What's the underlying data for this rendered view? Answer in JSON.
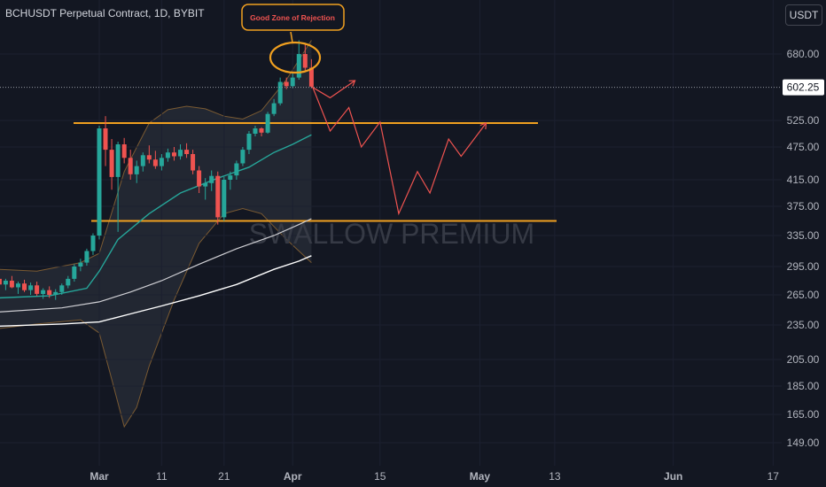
{
  "header": {
    "title": "BCHUSDT Perpetual Contract, 1D, BYBIT",
    "currency_label": "USDT"
  },
  "colors": {
    "background": "#131722",
    "up": "#26a69a",
    "down": "#ef5350",
    "level": "#f0a020",
    "ema": "#26a69a",
    "ma_slow": "#ffffff",
    "projection": "#ef5350"
  },
  "watermark": "SWALLOW PREMIUM",
  "annotation": {
    "text": "Good Zone of Rejection"
  },
  "current_price": {
    "label": "602.25",
    "value": 602.25
  },
  "chart_data": {
    "type": "candlestick",
    "y_ticks": [
      {
        "label": "680.00",
        "value": 680
      },
      {
        "label": "525.00",
        "value": 525
      },
      {
        "label": "475.00",
        "value": 475
      },
      {
        "label": "415.00",
        "value": 415
      },
      {
        "label": "375.00",
        "value": 375
      },
      {
        "label": "335.00",
        "value": 335
      },
      {
        "label": "295.00",
        "value": 295
      },
      {
        "label": "265.00",
        "value": 265
      },
      {
        "label": "235.00",
        "value": 235
      },
      {
        "label": "205.00",
        "value": 205
      },
      {
        "label": "185.00",
        "value": 185
      },
      {
        "label": "165.00",
        "value": 165
      },
      {
        "label": "149.00",
        "value": 149
      }
    ],
    "x_ticks": [
      {
        "label": "Mar",
        "bold": true,
        "day": 0
      },
      {
        "label": "11",
        "bold": false,
        "day": 10
      },
      {
        "label": "21",
        "bold": false,
        "day": 20
      },
      {
        "label": "Apr",
        "bold": true,
        "day": 31
      },
      {
        "label": "15",
        "bold": false,
        "day": 45
      },
      {
        "label": "May",
        "bold": true,
        "day": 61
      },
      {
        "label": "13",
        "bold": false,
        "day": 73
      },
      {
        "label": "Jun",
        "bold": true,
        "day": 92
      },
      {
        "label": "17",
        "bold": false,
        "day": 108
      }
    ],
    "levels": [
      {
        "name": "resistance",
        "value": 520
      },
      {
        "name": "support",
        "value": 355
      }
    ],
    "candles": [
      {
        "day": -16,
        "o": 282,
        "h": 287,
        "l": 272,
        "c": 276
      },
      {
        "day": -15,
        "o": 276,
        "h": 282,
        "l": 270,
        "c": 280
      },
      {
        "day": -14,
        "o": 280,
        "h": 285,
        "l": 272,
        "c": 273
      },
      {
        "day": -13,
        "o": 273,
        "h": 279,
        "l": 266,
        "c": 277
      },
      {
        "day": -12,
        "o": 277,
        "h": 281,
        "l": 268,
        "c": 270
      },
      {
        "day": -11,
        "o": 270,
        "h": 278,
        "l": 265,
        "c": 275
      },
      {
        "day": -10,
        "o": 275,
        "h": 279,
        "l": 264,
        "c": 266
      },
      {
        "day": -9,
        "o": 266,
        "h": 272,
        "l": 261,
        "c": 270
      },
      {
        "day": -8,
        "o": 270,
        "h": 274,
        "l": 262,
        "c": 265
      },
      {
        "day": -7,
        "o": 265,
        "h": 271,
        "l": 260,
        "c": 268
      },
      {
        "day": -6,
        "o": 268,
        "h": 277,
        "l": 265,
        "c": 275
      },
      {
        "day": -5,
        "o": 275,
        "h": 285,
        "l": 272,
        "c": 282
      },
      {
        "day": -4,
        "o": 282,
        "h": 298,
        "l": 279,
        "c": 295
      },
      {
        "day": -3,
        "o": 295,
        "h": 305,
        "l": 290,
        "c": 300
      },
      {
        "day": -2,
        "o": 300,
        "h": 318,
        "l": 296,
        "c": 315
      },
      {
        "day": -1,
        "o": 315,
        "h": 338,
        "l": 310,
        "c": 335
      },
      {
        "day": 0,
        "o": 335,
        "h": 515,
        "l": 330,
        "c": 510
      },
      {
        "day": 1,
        "o": 510,
        "h": 535,
        "l": 440,
        "c": 470
      },
      {
        "day": 2,
        "o": 470,
        "h": 490,
        "l": 400,
        "c": 420
      },
      {
        "day": 3,
        "o": 420,
        "h": 485,
        "l": 340,
        "c": 480
      },
      {
        "day": 4,
        "o": 480,
        "h": 492,
        "l": 445,
        "c": 455
      },
      {
        "day": 5,
        "o": 455,
        "h": 470,
        "l": 415,
        "c": 425
      },
      {
        "day": 6,
        "o": 425,
        "h": 450,
        "l": 410,
        "c": 440
      },
      {
        "day": 7,
        "o": 440,
        "h": 465,
        "l": 430,
        "c": 460
      },
      {
        "day": 8,
        "o": 460,
        "h": 478,
        "l": 445,
        "c": 452
      },
      {
        "day": 9,
        "o": 452,
        "h": 468,
        "l": 435,
        "c": 440
      },
      {
        "day": 10,
        "o": 440,
        "h": 462,
        "l": 432,
        "c": 455
      },
      {
        "day": 11,
        "o": 455,
        "h": 472,
        "l": 448,
        "c": 465
      },
      {
        "day": 12,
        "o": 465,
        "h": 475,
        "l": 450,
        "c": 458
      },
      {
        "day": 13,
        "o": 458,
        "h": 480,
        "l": 452,
        "c": 470
      },
      {
        "day": 14,
        "o": 470,
        "h": 482,
        "l": 455,
        "c": 462
      },
      {
        "day": 15,
        "o": 462,
        "h": 470,
        "l": 425,
        "c": 432
      },
      {
        "day": 16,
        "o": 432,
        "h": 440,
        "l": 395,
        "c": 405
      },
      {
        "day": 17,
        "o": 405,
        "h": 418,
        "l": 385,
        "c": 410
      },
      {
        "day": 18,
        "o": 410,
        "h": 432,
        "l": 398,
        "c": 422
      },
      {
        "day": 19,
        "o": 422,
        "h": 430,
        "l": 350,
        "c": 360
      },
      {
        "day": 20,
        "o": 360,
        "h": 420,
        "l": 355,
        "c": 415
      },
      {
        "day": 21,
        "o": 415,
        "h": 430,
        "l": 400,
        "c": 423
      },
      {
        "day": 22,
        "o": 423,
        "h": 450,
        "l": 415,
        "c": 445
      },
      {
        "day": 23,
        "o": 445,
        "h": 475,
        "l": 440,
        "c": 470
      },
      {
        "day": 24,
        "o": 470,
        "h": 505,
        "l": 462,
        "c": 500
      },
      {
        "day": 25,
        "o": 500,
        "h": 515,
        "l": 495,
        "c": 510
      },
      {
        "day": 26,
        "o": 510,
        "h": 512,
        "l": 495,
        "c": 502
      },
      {
        "day": 27,
        "o": 502,
        "h": 545,
        "l": 500,
        "c": 540
      },
      {
        "day": 28,
        "o": 540,
        "h": 575,
        "l": 535,
        "c": 565
      },
      {
        "day": 29,
        "o": 565,
        "h": 625,
        "l": 560,
        "c": 615
      },
      {
        "day": 30,
        "o": 615,
        "h": 625,
        "l": 598,
        "c": 605
      },
      {
        "day": 31,
        "o": 605,
        "h": 635,
        "l": 600,
        "c": 625
      },
      {
        "day": 32,
        "o": 625,
        "h": 690,
        "l": 620,
        "c": 680
      },
      {
        "day": 33,
        "o": 680,
        "h": 688,
        "l": 640,
        "c": 648
      },
      {
        "day": 34,
        "o": 648,
        "h": 668,
        "l": 600,
        "c": 604
      }
    ],
    "ema_green": [
      {
        "day": -16,
        "v": 262
      },
      {
        "day": -8,
        "v": 264
      },
      {
        "day": -2,
        "v": 272
      },
      {
        "day": 0,
        "v": 290
      },
      {
        "day": 3,
        "v": 330
      },
      {
        "day": 8,
        "v": 365
      },
      {
        "day": 13,
        "v": 395
      },
      {
        "day": 19,
        "v": 418
      },
      {
        "day": 24,
        "v": 438
      },
      {
        "day": 28,
        "v": 465
      },
      {
        "day": 31,
        "v": 480
      },
      {
        "day": 34,
        "v": 498
      }
    ],
    "ma_white_1": [
      {
        "day": -16,
        "v": 248
      },
      {
        "day": -6,
        "v": 252
      },
      {
        "day": 0,
        "v": 258
      },
      {
        "day": 5,
        "v": 268
      },
      {
        "day": 10,
        "v": 280
      },
      {
        "day": 16,
        "v": 298
      },
      {
        "day": 22,
        "v": 318
      },
      {
        "day": 28,
        "v": 335
      },
      {
        "day": 32,
        "v": 350
      },
      {
        "day": 34,
        "v": 358
      }
    ],
    "ma_white_2": [
      {
        "day": -16,
        "v": 234
      },
      {
        "day": -6,
        "v": 236
      },
      {
        "day": 0,
        "v": 238
      },
      {
        "day": 5,
        "v": 246
      },
      {
        "day": 10,
        "v": 254
      },
      {
        "day": 16,
        "v": 264
      },
      {
        "day": 22,
        "v": 276
      },
      {
        "day": 28,
        "v": 292
      },
      {
        "day": 32,
        "v": 302
      },
      {
        "day": 34,
        "v": 309
      }
    ],
    "bb_upper": [
      {
        "day": -16,
        "v": 292
      },
      {
        "day": -10,
        "v": 290
      },
      {
        "day": -3,
        "v": 300
      },
      {
        "day": 0,
        "v": 312
      },
      {
        "day": 4,
        "v": 430
      },
      {
        "day": 8,
        "v": 520
      },
      {
        "day": 11,
        "v": 550
      },
      {
        "day": 14,
        "v": 558
      },
      {
        "day": 17,
        "v": 552
      },
      {
        "day": 20,
        "v": 535
      },
      {
        "day": 23,
        "v": 528
      },
      {
        "day": 26,
        "v": 548
      },
      {
        "day": 30,
        "v": 620
      },
      {
        "day": 34,
        "v": 690
      }
    ],
    "bb_lower": [
      {
        "day": -16,
        "v": 232
      },
      {
        "day": -10,
        "v": 236
      },
      {
        "day": -3,
        "v": 240
      },
      {
        "day": 0,
        "v": 228
      },
      {
        "day": 2,
        "v": 190
      },
      {
        "day": 4,
        "v": 158
      },
      {
        "day": 6,
        "v": 170
      },
      {
        "day": 8,
        "v": 200
      },
      {
        "day": 12,
        "v": 260
      },
      {
        "day": 16,
        "v": 325
      },
      {
        "day": 20,
        "v": 365
      },
      {
        "day": 23,
        "v": 372
      },
      {
        "day": 26,
        "v": 365
      },
      {
        "day": 30,
        "v": 330
      },
      {
        "day": 34,
        "v": 300
      }
    ],
    "projection": [
      {
        "day": 34,
        "v": 610
      },
      {
        "day": 37,
        "v": 505
      },
      {
        "day": 40,
        "v": 555
      },
      {
        "day": 42,
        "v": 475
      },
      {
        "day": 45,
        "v": 522
      },
      {
        "day": 48,
        "v": 365
      },
      {
        "day": 51,
        "v": 430
      },
      {
        "day": 53,
        "v": 395
      },
      {
        "day": 56,
        "v": 490
      },
      {
        "day": 58,
        "v": 458
      },
      {
        "day": 62,
        "v": 520
      }
    ],
    "projection_up": [
      {
        "day": 34,
        "v": 604
      },
      {
        "day": 37,
        "v": 578
      },
      {
        "day": 41,
        "v": 618
      }
    ]
  }
}
